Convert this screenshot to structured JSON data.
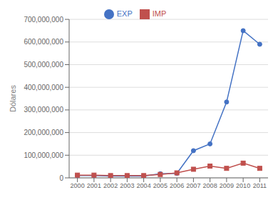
{
  "chart_data": {
    "type": "line",
    "x": [
      2000,
      2001,
      2002,
      2003,
      2004,
      2005,
      2006,
      2007,
      2008,
      2009,
      2010,
      2011
    ],
    "series": [
      {
        "name": "EXP",
        "color": "#4472C4",
        "marker": "circle",
        "values": [
          10000000,
          10000000,
          8000000,
          8000000,
          8000000,
          18000000,
          20000000,
          120000000,
          150000000,
          335000000,
          650000000,
          590000000
        ]
      },
      {
        "name": "IMP",
        "color": "#C0504D",
        "marker": "square",
        "values": [
          12000000,
          12000000,
          10000000,
          10000000,
          10000000,
          15000000,
          22000000,
          38000000,
          52000000,
          42000000,
          65000000,
          42000000
        ]
      }
    ],
    "y_label": "Dólares",
    "xlim": [
      1999.5,
      2011.5
    ],
    "xticks": [
      2000,
      2001,
      2002,
      2003,
      2004,
      2005,
      2006,
      2007,
      2008,
      2009,
      2010,
      2011
    ],
    "ylim": [
      0,
      700000000
    ],
    "yticks": [
      0,
      {
        "value": 100000000,
        "label": "100,000,000"
      },
      {
        "value": 200000000,
        "label": "200,000,000"
      },
      {
        "value": 300000000,
        "label": "300,000,000"
      },
      {
        "value": 400000000,
        "label": "400,000,000"
      },
      {
        "value": 500000000,
        "label": "500,000,000"
      },
      {
        "value": 600000000,
        "label": "600,000,000"
      },
      {
        "value": 700000000,
        "label": "700,000,000"
      }
    ],
    "grid": true,
    "legend": "top"
  }
}
